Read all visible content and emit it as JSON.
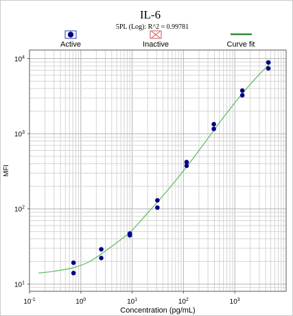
{
  "chart_data": {
    "type": "scatter",
    "title": "IL-6",
    "subtitle": "5PL (Log): R^2 = 0.99781",
    "xlabel": "Concentration (pg/mL)",
    "ylabel": "MFI",
    "x_scale": "log",
    "y_scale": "log",
    "xlim": [
      0.1,
      10000
    ],
    "ylim": [
      8,
      13000
    ],
    "grid": true,
    "legend": {
      "placement": "top",
      "entries": [
        {
          "label": "Active",
          "marker": "filled-circle-box",
          "color": "#00008b"
        },
        {
          "label": "Inactive",
          "marker": "cross-box",
          "color": "#c0504d"
        },
        {
          "label": "Curve fit",
          "marker": "line",
          "color": "#2e8b2e"
        }
      ]
    },
    "x_ticks": [
      {
        "value": 0.1,
        "base": "10",
        "exp": "-1"
      },
      {
        "value": 1,
        "base": "10",
        "exp": "0"
      },
      {
        "value": 10,
        "base": "10",
        "exp": "1"
      },
      {
        "value": 100,
        "base": "10",
        "exp": "2"
      },
      {
        "value": 1000,
        "base": "10",
        "exp": "3"
      }
    ],
    "y_ticks": [
      {
        "value": 10,
        "base": "10",
        "exp": "1"
      },
      {
        "value": 100,
        "base": "10",
        "exp": "2"
      },
      {
        "value": 1000,
        "base": "10",
        "exp": "3"
      },
      {
        "value": 10000,
        "base": "10",
        "exp": "4"
      }
    ],
    "series": [
      {
        "name": "Active",
        "color": "#00008b",
        "points": [
          {
            "x": 0.72,
            "y": 19.2
          },
          {
            "x": 0.72,
            "y": 14.0
          },
          {
            "x": 2.5,
            "y": 29.0
          },
          {
            "x": 2.5,
            "y": 22.2
          },
          {
            "x": 9.0,
            "y": 47.0
          },
          {
            "x": 9.0,
            "y": 44.5
          },
          {
            "x": 31,
            "y": 130
          },
          {
            "x": 31,
            "y": 104
          },
          {
            "x": 115,
            "y": 420
          },
          {
            "x": 115,
            "y": 375
          },
          {
            "x": 390,
            "y": 1340
          },
          {
            "x": 390,
            "y": 1160
          },
          {
            "x": 1400,
            "y": 3750
          },
          {
            "x": 1400,
            "y": 3250
          },
          {
            "x": 4500,
            "y": 8900
          },
          {
            "x": 4500,
            "y": 7400
          }
        ]
      },
      {
        "name": "Curve fit",
        "color": "#5cb85c",
        "curve": [
          {
            "x": 0.15,
            "y": 14.0
          },
          {
            "x": 0.3,
            "y": 14.8
          },
          {
            "x": 0.72,
            "y": 16.5
          },
          {
            "x": 1.5,
            "y": 20.0
          },
          {
            "x": 3.0,
            "y": 27.5
          },
          {
            "x": 6.0,
            "y": 39.0
          },
          {
            "x": 10,
            "y": 52.0
          },
          {
            "x": 20,
            "y": 88.0
          },
          {
            "x": 40,
            "y": 150
          },
          {
            "x": 80,
            "y": 265
          },
          {
            "x": 150,
            "y": 460
          },
          {
            "x": 300,
            "y": 870
          },
          {
            "x": 600,
            "y": 1650
          },
          {
            "x": 1200,
            "y": 3000
          },
          {
            "x": 2500,
            "y": 5400
          },
          {
            "x": 5000,
            "y": 8800
          }
        ]
      }
    ]
  }
}
